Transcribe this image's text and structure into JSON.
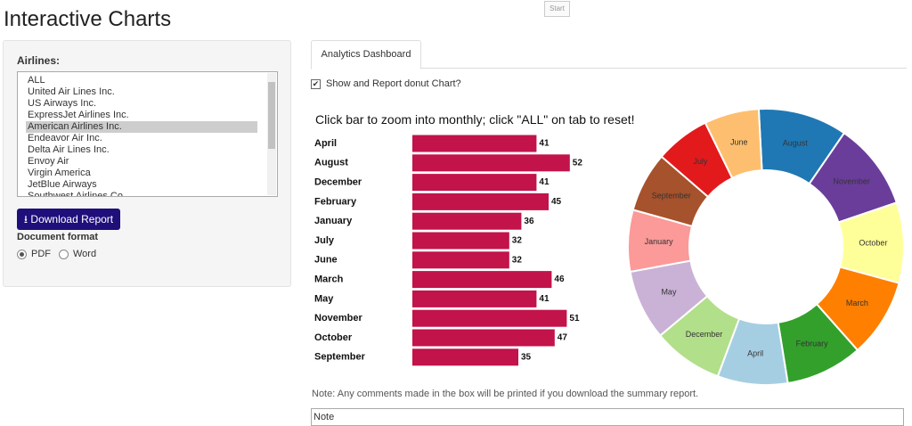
{
  "header": {
    "title": "Interactive Charts",
    "start_button": "Start"
  },
  "sidebar": {
    "airlines_label": "Airlines:",
    "airlines": [
      "ALL",
      "United Air Lines Inc.",
      "US Airways Inc.",
      "ExpressJet Airlines Inc.",
      "American Airlines Inc.",
      "Endeavor Air Inc.",
      "Delta Air Lines Inc.",
      "Envoy Air",
      "Virgin America",
      "JetBlue Airways",
      "Southwest Airlines Co."
    ],
    "selected_airline": "American Airlines Inc.",
    "download_button": "Download Report",
    "document_format_label": "Document format",
    "formats": [
      "PDF",
      "Word"
    ],
    "selected_format": "PDF"
  },
  "main": {
    "tab": "Analytics Dashboard",
    "checkbox_label": "Show and Report donut Chart?",
    "checkbox_checked": true,
    "instruction": "Click bar to zoom into monthly; click \"ALL\" on tab to reset!",
    "note_text": "Note: Any comments made in the box will be printed if you download the summary report.",
    "textarea": "Note"
  },
  "bar_chart": {
    "type": "bar",
    "color": "#c2134b",
    "categories": [
      "April",
      "August",
      "December",
      "February",
      "January",
      "July",
      "June",
      "March",
      "May",
      "November",
      "October",
      "September"
    ],
    "values": [
      41,
      52,
      41,
      45,
      36,
      32,
      32,
      46,
      41,
      51,
      47,
      35
    ]
  },
  "donut_chart": {
    "type": "donut",
    "categories": [
      "August",
      "November",
      "October",
      "March",
      "February",
      "April",
      "December",
      "May",
      "January",
      "September",
      "July",
      "June"
    ],
    "values": [
      52,
      51,
      47,
      46,
      45,
      41,
      41,
      41,
      36,
      35,
      32,
      32
    ],
    "colors": [
      "#1f78b4",
      "#6a3d9a",
      "#ffff99",
      "#ff7f00",
      "#33a02c",
      "#a6cee3",
      "#b2df8a",
      "#cab2d6",
      "#fb9a99",
      "#a6522c",
      "#e31a1c",
      "#fdbf6f"
    ]
  }
}
